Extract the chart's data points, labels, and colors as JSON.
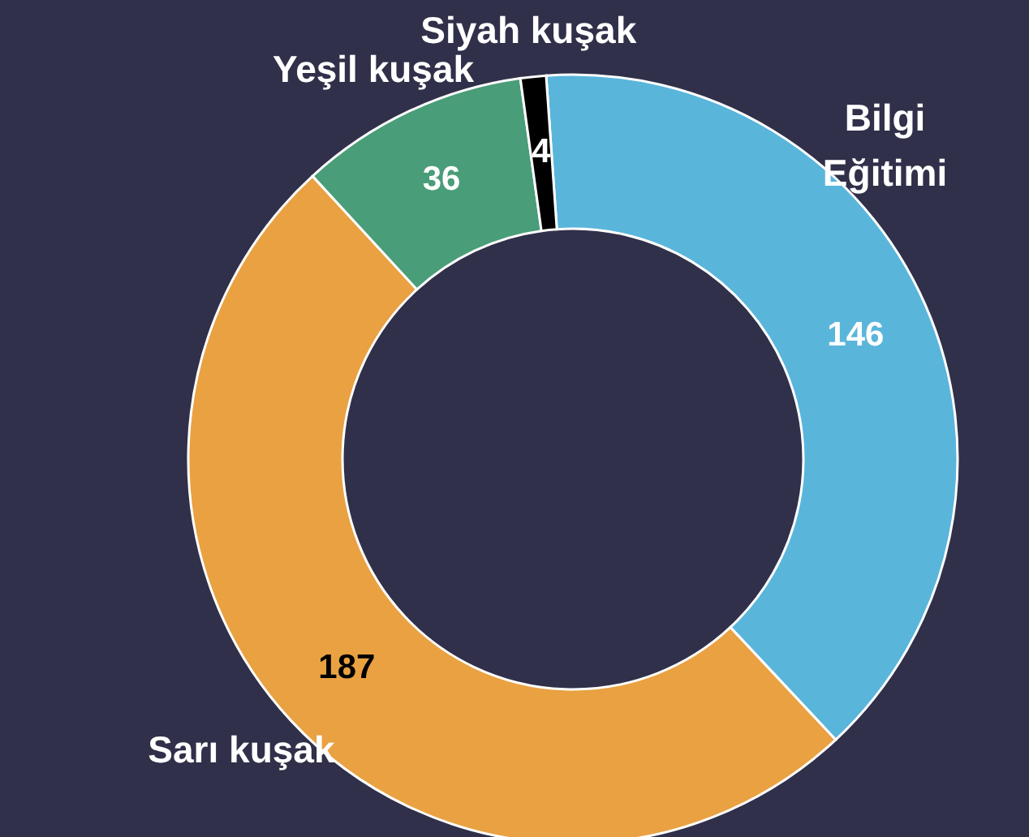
{
  "chart_data": {
    "type": "donut",
    "categories": [
      "Bilgi Eğitimi",
      "Sarı kuşak",
      "Yeşil kuşak",
      "Siyah kuşak"
    ],
    "values": [
      146,
      187,
      36,
      4
    ],
    "colors": [
      "#5ab5db",
      "#e9a142",
      "#4a9d79",
      "#000000"
    ],
    "data_labels": true
  }
}
